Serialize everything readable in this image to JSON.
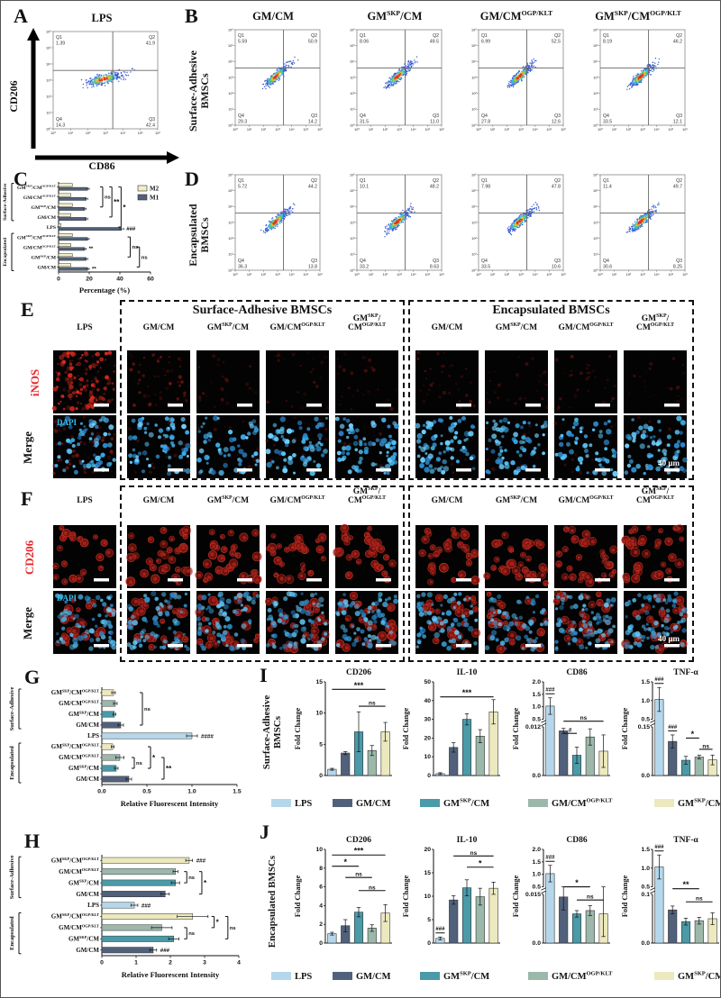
{
  "palette": {
    "lps": "#b5d7eb",
    "gmcm": "#51617b",
    "gmskp": "#4a9aa8",
    "gmogp": "#9bb8ab",
    "gmskpogp": "#ece9be",
    "m2": "#f2eec8",
    "m1": "#51617b"
  },
  "flow_ticks": [
    "10⁰",
    "10¹",
    "10²",
    "10³",
    "10⁴",
    "10⁵",
    "10⁶"
  ],
  "group_order": [
    "lps",
    "gmcm",
    "gmskp",
    "gmogp",
    "gmskpogp"
  ],
  "panelA": {
    "label": "A",
    "title": "LPS",
    "x_axis": "CD86",
    "y_axis": "CD206",
    "plot": {
      "q1": "1.39",
      "q2": "41.9",
      "q3": "42.4",
      "q4": "14.3"
    }
  },
  "panelB": {
    "label": "B",
    "side_label_1": "Surface-Adhesive",
    "side_label_2": "BMSCs",
    "plots": [
      {
        "title": "GM/CM",
        "q1": "5.59",
        "q2": "50.9",
        "q3": "14.2",
        "q4": "29.3"
      },
      {
        "title": "GM{SKP}/CM",
        "q1": "8.06",
        "q2": "49.5",
        "q3": "11.0",
        "q4": "31.5"
      },
      {
        "title": "GM/CM{OGP/KLT}",
        "q1": "6.99",
        "q2": "52.5",
        "q3": "12.6",
        "q4": "27.8"
      },
      {
        "title": "GM{SKP}/CM{OGP/KLT}",
        "q1": "8.19",
        "q2": "46.2",
        "q3": "12.1",
        "q4": "33.5"
      }
    ]
  },
  "panelC": {
    "label": "C",
    "xlabel": "Percentage (%)",
    "xmax": 60,
    "xticks": [
      "0",
      "20",
      "40",
      "60"
    ],
    "legend": [
      {
        "label": "M2",
        "color_key": "m2"
      },
      {
        "label": "M1",
        "color_key": "m1"
      }
    ],
    "groups": [
      {
        "label": "Surface-Adhesive",
        "r1": 0,
        "r2": 3
      },
      {
        "label": "Encapsulated",
        "r1": 5,
        "r2": 8
      }
    ],
    "rows": [
      {
        "label": "GM{SKP}/CM{OGP/KLT}",
        "m2": 9,
        "m1": 19,
        "e": 1
      },
      {
        "label": "GM/CM{OGP/KLT}",
        "m2": 8,
        "m1": 18,
        "e": 1
      },
      {
        "label": "GM{SKP}/CM",
        "m2": 9,
        "m1": 17,
        "e": 1
      },
      {
        "label": "GM/CM",
        "m2": 8,
        "m1": 18,
        "e": 1
      },
      {
        "label": "LPS",
        "m2": 1.5,
        "m1": 41,
        "e": 1.5,
        "mark": "###"
      },
      {
        "label": "GM{SKP}/CM{OGP/KLT}",
        "m2": 9,
        "m1": 19,
        "e": 1
      },
      {
        "label": "GM/CM{OGP/KLT}",
        "m2": 8,
        "m1": 17,
        "e": 1,
        "mark": "**"
      },
      {
        "label": "GM{SKP}/CM",
        "m2": 9,
        "m1": 18,
        "e": 1
      },
      {
        "label": "GM/CM",
        "m2": 8,
        "m1": 19,
        "e": 1,
        "mark": "**"
      }
    ],
    "brackets": [
      {
        "text": "ns",
        "r1": 0,
        "r2": 2,
        "xf": 0.48
      },
      {
        "text": "**",
        "r1": 0,
        "r2": 3,
        "xf": 0.58
      },
      {
        "text": "*",
        "r1": 0,
        "r2": 4,
        "xf": 0.68
      },
      {
        "text": "ns",
        "r1": 5,
        "r2": 7,
        "xf": 0.78
      },
      {
        "text": "ns",
        "r1": 6,
        "r2": 8,
        "xf": 0.88
      }
    ]
  },
  "panelD": {
    "label": "D",
    "side_label_1": "Encapsulated",
    "side_label_2": "BMSCs",
    "plots": [
      {
        "q1": "5.72",
        "q2": "44.2",
        "q3": "13.8",
        "q4": "36.3"
      },
      {
        "q1": "10.1",
        "q2": "48.2",
        "q3": "8.63",
        "q4": "33.2"
      },
      {
        "q1": "7.98",
        "q2": "47.8",
        "q3": "10.6",
        "q4": "33.5"
      },
      {
        "q1": "11.4",
        "q2": "49.7",
        "q3": "8.25",
        "q4": "30.6"
      }
    ]
  },
  "panelE": {
    "label": "E",
    "box1_title": "Surface-Adhesive BMSCs",
    "box2_title": "Encapsulated BMSCs",
    "row1_label": "iNOS",
    "row2_label": "Merge",
    "dapi_label": "DAPI",
    "scale_label": "40 µm",
    "columns": [
      "LPS",
      "GM/CM",
      "GM{SKP}/CM",
      "GM/CM{OGP/KLT}",
      "GM{SKP}/\nCM{OGP/KLT}",
      "GM/CM",
      "GM{SKP}/CM",
      "GM/CM{OGP/KLT}",
      "GM{SKP}/\nCM{OGP/KLT}"
    ],
    "inos_red": [
      0.95,
      0.3,
      0.1,
      0.08,
      0.1,
      0.16,
      0.12,
      0.15,
      0.07
    ],
    "merge_red": [
      0.45,
      0.1,
      0.04,
      0.04,
      0.04,
      0.05,
      0.04,
      0.04,
      0.03
    ]
  },
  "panelF": {
    "label": "F",
    "row1_label": "CD206",
    "row2_label": "Merge",
    "dapi_label": "DAPI",
    "scale_label": "40 µm",
    "columns": [
      "LPS",
      "GM/CM",
      "GM{SKP}/CM",
      "GM/CM{OGP/KLT}",
      "GM{SKP}/\nCM{OGP/KLT}",
      "GM/CM",
      "GM{SKP}/CM",
      "GM/CM{OGP/KLT}",
      "GM{SKP}/\nCM{OGP/KLT}"
    ],
    "cd206_red": [
      0.35,
      0.85,
      0.72,
      0.68,
      0.8,
      0.8,
      0.78,
      0.72,
      0.85
    ],
    "merge_red": [
      0.3,
      0.7,
      0.65,
      0.6,
      0.7,
      0.7,
      0.68,
      0.65,
      0.72
    ]
  },
  "panelG": {
    "label": "G",
    "xlabel": "Relative Fluorescent Intensity",
    "xmax": 1.5,
    "xticks": [
      "0.0",
      "0.5",
      "1.0",
      "1.5"
    ],
    "groups": [
      {
        "label": "Surface-Adhesive",
        "r1": 0,
        "r2": 3
      },
      {
        "label": "Encapsulated",
        "r1": 5,
        "r2": 8
      }
    ],
    "rows": [
      {
        "label": "GM{SKP}/CM{OGP/KLT}",
        "v": 0.13,
        "e": 0.02,
        "color": "gmskpogp"
      },
      {
        "label": "GM/CM{OGP/KLT}",
        "v": 0.15,
        "e": 0.02,
        "color": "gmogp"
      },
      {
        "label": "GM{SKP}/CM",
        "v": 0.14,
        "e": 0.015,
        "color": "gmskp"
      },
      {
        "label": "GM/CM",
        "v": 0.21,
        "e": 0.03,
        "color": "gmcm"
      },
      {
        "label": "LPS",
        "v": 1.0,
        "e": 0.06,
        "color": "lps",
        "mark": "####"
      },
      {
        "label": "GM{SKP}/CM{OGP/KLT}",
        "v": 0.12,
        "e": 0.015,
        "color": "gmskpogp"
      },
      {
        "label": "GM/CM{OGP/KLT}",
        "v": 0.2,
        "e": 0.045,
        "color": "gmogp"
      },
      {
        "label": "GM{SKP}/CM",
        "v": 0.16,
        "e": 0.02,
        "color": "gmskp"
      },
      {
        "label": "GM/CM",
        "v": 0.3,
        "e": 0.03,
        "color": "gmcm"
      }
    ],
    "brackets": [
      {
        "text": "ns",
        "r1": 0,
        "r2": 3,
        "xf": 0.3
      },
      {
        "text": "ns",
        "r1": 6,
        "r2": 7,
        "xf": 0.24
      },
      {
        "text": "*",
        "r1": 5,
        "r2": 7,
        "xf": 0.36
      },
      {
        "text": "**",
        "r1": 6,
        "r2": 8,
        "xf": 0.46
      }
    ]
  },
  "panelH": {
    "label": "H",
    "xlabel": "Relative Fluorescent Intensity",
    "xmax": 4,
    "xticks": [
      "0",
      "1",
      "2",
      "3",
      "4"
    ],
    "groups": [
      {
        "label": "Surface-Adhesive",
        "r1": 0,
        "r2": 3
      },
      {
        "label": "Encapsulated",
        "r1": 5,
        "r2": 8
      }
    ],
    "rows": [
      {
        "label": "GM{SKP}/CM{OGP/KLT}",
        "v": 2.55,
        "e": 0.1,
        "color": "gmskpogp",
        "mark": "###"
      },
      {
        "label": "GM/CM{OGP/KLT}",
        "v": 2.15,
        "e": 0.07,
        "color": "gmogp"
      },
      {
        "label": "GM{SKP}/CM",
        "v": 2.15,
        "e": 0.12,
        "color": "gmskp"
      },
      {
        "label": "GM/CM",
        "v": 1.85,
        "e": 0.12,
        "color": "gmcm"
      },
      {
        "label": "LPS",
        "v": 0.95,
        "e": 0.1,
        "color": "lps",
        "mark": "###"
      },
      {
        "label": "GM{SKP}/CM{OGP/KLT}",
        "v": 2.65,
        "e": 0.45,
        "color": "gmskpogp"
      },
      {
        "label": "GM/CM{OGP/KLT}",
        "v": 1.75,
        "e": 0.3,
        "color": "gmogp"
      },
      {
        "label": "GM{SKP}/CM",
        "v": 2.1,
        "e": 0.15,
        "color": "gmskp"
      },
      {
        "label": "GM/CM",
        "v": 1.5,
        "e": 0.1,
        "color": "gmcm",
        "mark": "###"
      }
    ],
    "brackets": [
      {
        "text": "ns",
        "r1": 1,
        "r2": 2,
        "xf": 0.62
      },
      {
        "text": "*",
        "r1": 1,
        "r2": 3,
        "xf": 0.73
      },
      {
        "text": "*",
        "r1": 5,
        "r2": 6,
        "xf": 0.82
      },
      {
        "text": "ns",
        "r1": 6,
        "r2": 7,
        "xf": 0.62
      },
      {
        "text": "ns",
        "r1": 5,
        "r2": 7,
        "xf": 0.92
      }
    ]
  },
  "panelI": {
    "label": "I",
    "side_label_1": "Surface-Adhesive",
    "side_label_2": "BMSCs",
    "ylabel": "Fold Change",
    "charts": [
      {
        "title": "CD206",
        "ymax": 15,
        "yticks": [
          "0",
          "5",
          "10",
          "15"
        ],
        "values": [
          1.0,
          3.6,
          7.0,
          4.0,
          7.0
        ],
        "errors": [
          0.15,
          0.25,
          3.2,
          0.8,
          1.5
        ],
        "ann": [
          {
            "t": "***",
            "i1": 0,
            "i2": 4,
            "yf": 0.08
          },
          {
            "t": "ns",
            "i1": 2,
            "i2": 4,
            "yf": 0.26
          }
        ]
      },
      {
        "title": "IL-10",
        "ymax": 50,
        "yticks": [
          "0",
          "10",
          "20",
          "30",
          "40",
          "50"
        ],
        "values": [
          1.0,
          15,
          30,
          21,
          34
        ],
        "errors": [
          0.5,
          2.5,
          3,
          3.5,
          6.5
        ],
        "ann": [
          {
            "t": "***",
            "i1": 0,
            "i2": 4,
            "yf": 0.16
          }
        ]
      },
      {
        "title": "CD86",
        "axbreak": {
          "lowMax": 0.012,
          "highMin": 0.5,
          "highMax": 2.0,
          "lowTicks": [
            "0.0",
            "0.012"
          ],
          "highTicks": [
            "0.5",
            "1.0",
            "1.5",
            "2.0"
          ]
        },
        "values": [
          1.03,
          0.011,
          0.005,
          0.0095,
          0.006
        ],
        "errors": [
          0.33,
          0.0006,
          0.002,
          0.002,
          0.004
        ],
        "ann": [
          {
            "t": "###",
            "i1": 0,
            "i2": 0
          },
          {
            "t": "ns",
            "i1": 1,
            "i2": 4,
            "yf": 0.42
          },
          {
            "t": "#",
            "i1": 1,
            "i2": 2,
            "yf": 0.55
          }
        ]
      },
      {
        "title": "TNF-α",
        "axbreak": {
          "lowMax": 0.15,
          "highMin": 0.5,
          "highMax": 1.5,
          "lowTicks": [
            "0.0",
            "0.15"
          ],
          "highTicks": [
            "0.5",
            "1.0",
            "1.5"
          ]
        },
        "values": [
          1.03,
          0.105,
          0.047,
          0.057,
          0.048
        ],
        "errors": [
          0.32,
          0.02,
          0.012,
          0.006,
          0.015
        ],
        "ann": [
          {
            "t": "###",
            "i1": 0,
            "i2": 0
          },
          {
            "t": "###",
            "i1": 1,
            "i2": 1
          },
          {
            "t": "*",
            "i1": 2,
            "i2": 3,
            "yf": 0.6
          },
          {
            "t": "ns",
            "i1": 3,
            "i2": 4,
            "yf": 0.72
          }
        ]
      }
    ]
  },
  "panelJ": {
    "label": "J",
    "side_label_1": "Encapsulated BMSCs",
    "side_label_2": "",
    "ylabel": "Fold Change",
    "charts": [
      {
        "title": "CD206",
        "ymax": 10,
        "yticks": [
          "0",
          "2",
          "4",
          "6",
          "8",
          "10"
        ],
        "values": [
          1.0,
          1.85,
          3.3,
          1.6,
          3.2
        ],
        "errors": [
          0.15,
          0.65,
          0.5,
          0.35,
          0.9
        ],
        "ann": [
          {
            "t": "***",
            "i1": 0,
            "i2": 4,
            "yf": 0.06
          },
          {
            "t": "*",
            "i1": 0,
            "i2": 2,
            "yf": 0.18
          },
          {
            "t": "ns",
            "i1": 1,
            "i2": 3,
            "yf": 0.3
          },
          {
            "t": "ns",
            "i1": 2,
            "i2": 4,
            "yf": 0.44
          }
        ]
      },
      {
        "title": "IL-10",
        "ymax": 20,
        "yticks": [
          "0",
          "5",
          "10",
          "15",
          "20"
        ],
        "values": [
          1.0,
          9.2,
          11.8,
          9.9,
          11.7
        ],
        "errors": [
          0.3,
          0.9,
          1.7,
          1.8,
          1.3
        ],
        "ann": [
          {
            "t": "ns",
            "i1": 1,
            "i2": 4,
            "yf": 0.07
          },
          {
            "t": "*",
            "i1": 2,
            "i2": 4,
            "yf": 0.19
          },
          {
            "t": "###",
            "i1": 0,
            "i2": 0
          }
        ]
      },
      {
        "title": "CD86",
        "axbreak": {
          "lowMax": 0.015,
          "highMin": 0.5,
          "highMax": 2.0,
          "lowTicks": [
            "0.0",
            "0.015"
          ],
          "highTicks": [
            "0.5",
            "1.0",
            "1.5",
            "2.0"
          ]
        },
        "values": [
          1.03,
          0.0142,
          0.009,
          0.01,
          0.009
        ],
        "errors": [
          0.33,
          0.004,
          0.001,
          0.0015,
          0.007
        ],
        "ann": [
          {
            "t": "###",
            "i1": 0,
            "i2": 0
          },
          {
            "t": "*",
            "i1": 1,
            "i2": 3,
            "yf": 0.4
          },
          {
            "t": "ns",
            "i1": 2,
            "i2": 4,
            "yf": 0.54
          }
        ]
      },
      {
        "title": "TNF-α",
        "axbreak": {
          "lowMax": 0.1,
          "highMin": 0.5,
          "highMax": 1.5,
          "lowTicks": [
            "0.0",
            "0.1"
          ],
          "highTicks": [
            "0.5",
            "1.0",
            "1.5"
          ]
        },
        "values": [
          1.03,
          0.068,
          0.044,
          0.046,
          0.05
        ],
        "errors": [
          0.32,
          0.008,
          0.007,
          0.007,
          0.012
        ],
        "ann": [
          {
            "t": "###",
            "i1": 0,
            "i2": 0
          },
          {
            "t": "**",
            "i1": 1,
            "i2": 3,
            "yf": 0.42
          },
          {
            "t": "ns",
            "i1": 2,
            "i2": 4,
            "yf": 0.56
          }
        ]
      }
    ]
  },
  "legend": {
    "items": [
      {
        "label": "LPS",
        "color_key": "lps"
      },
      {
        "label": "GM/CM",
        "color_key": "gmcm"
      },
      {
        "label": "GM{SKP}/CM",
        "color_key": "gmskp"
      },
      {
        "label": "GM/CM{OGP/KLT}",
        "color_key": "gmogp"
      },
      {
        "label": "GM{SKP}/CM{OGP/KLT}",
        "color_key": "gmskpogp"
      }
    ]
  }
}
